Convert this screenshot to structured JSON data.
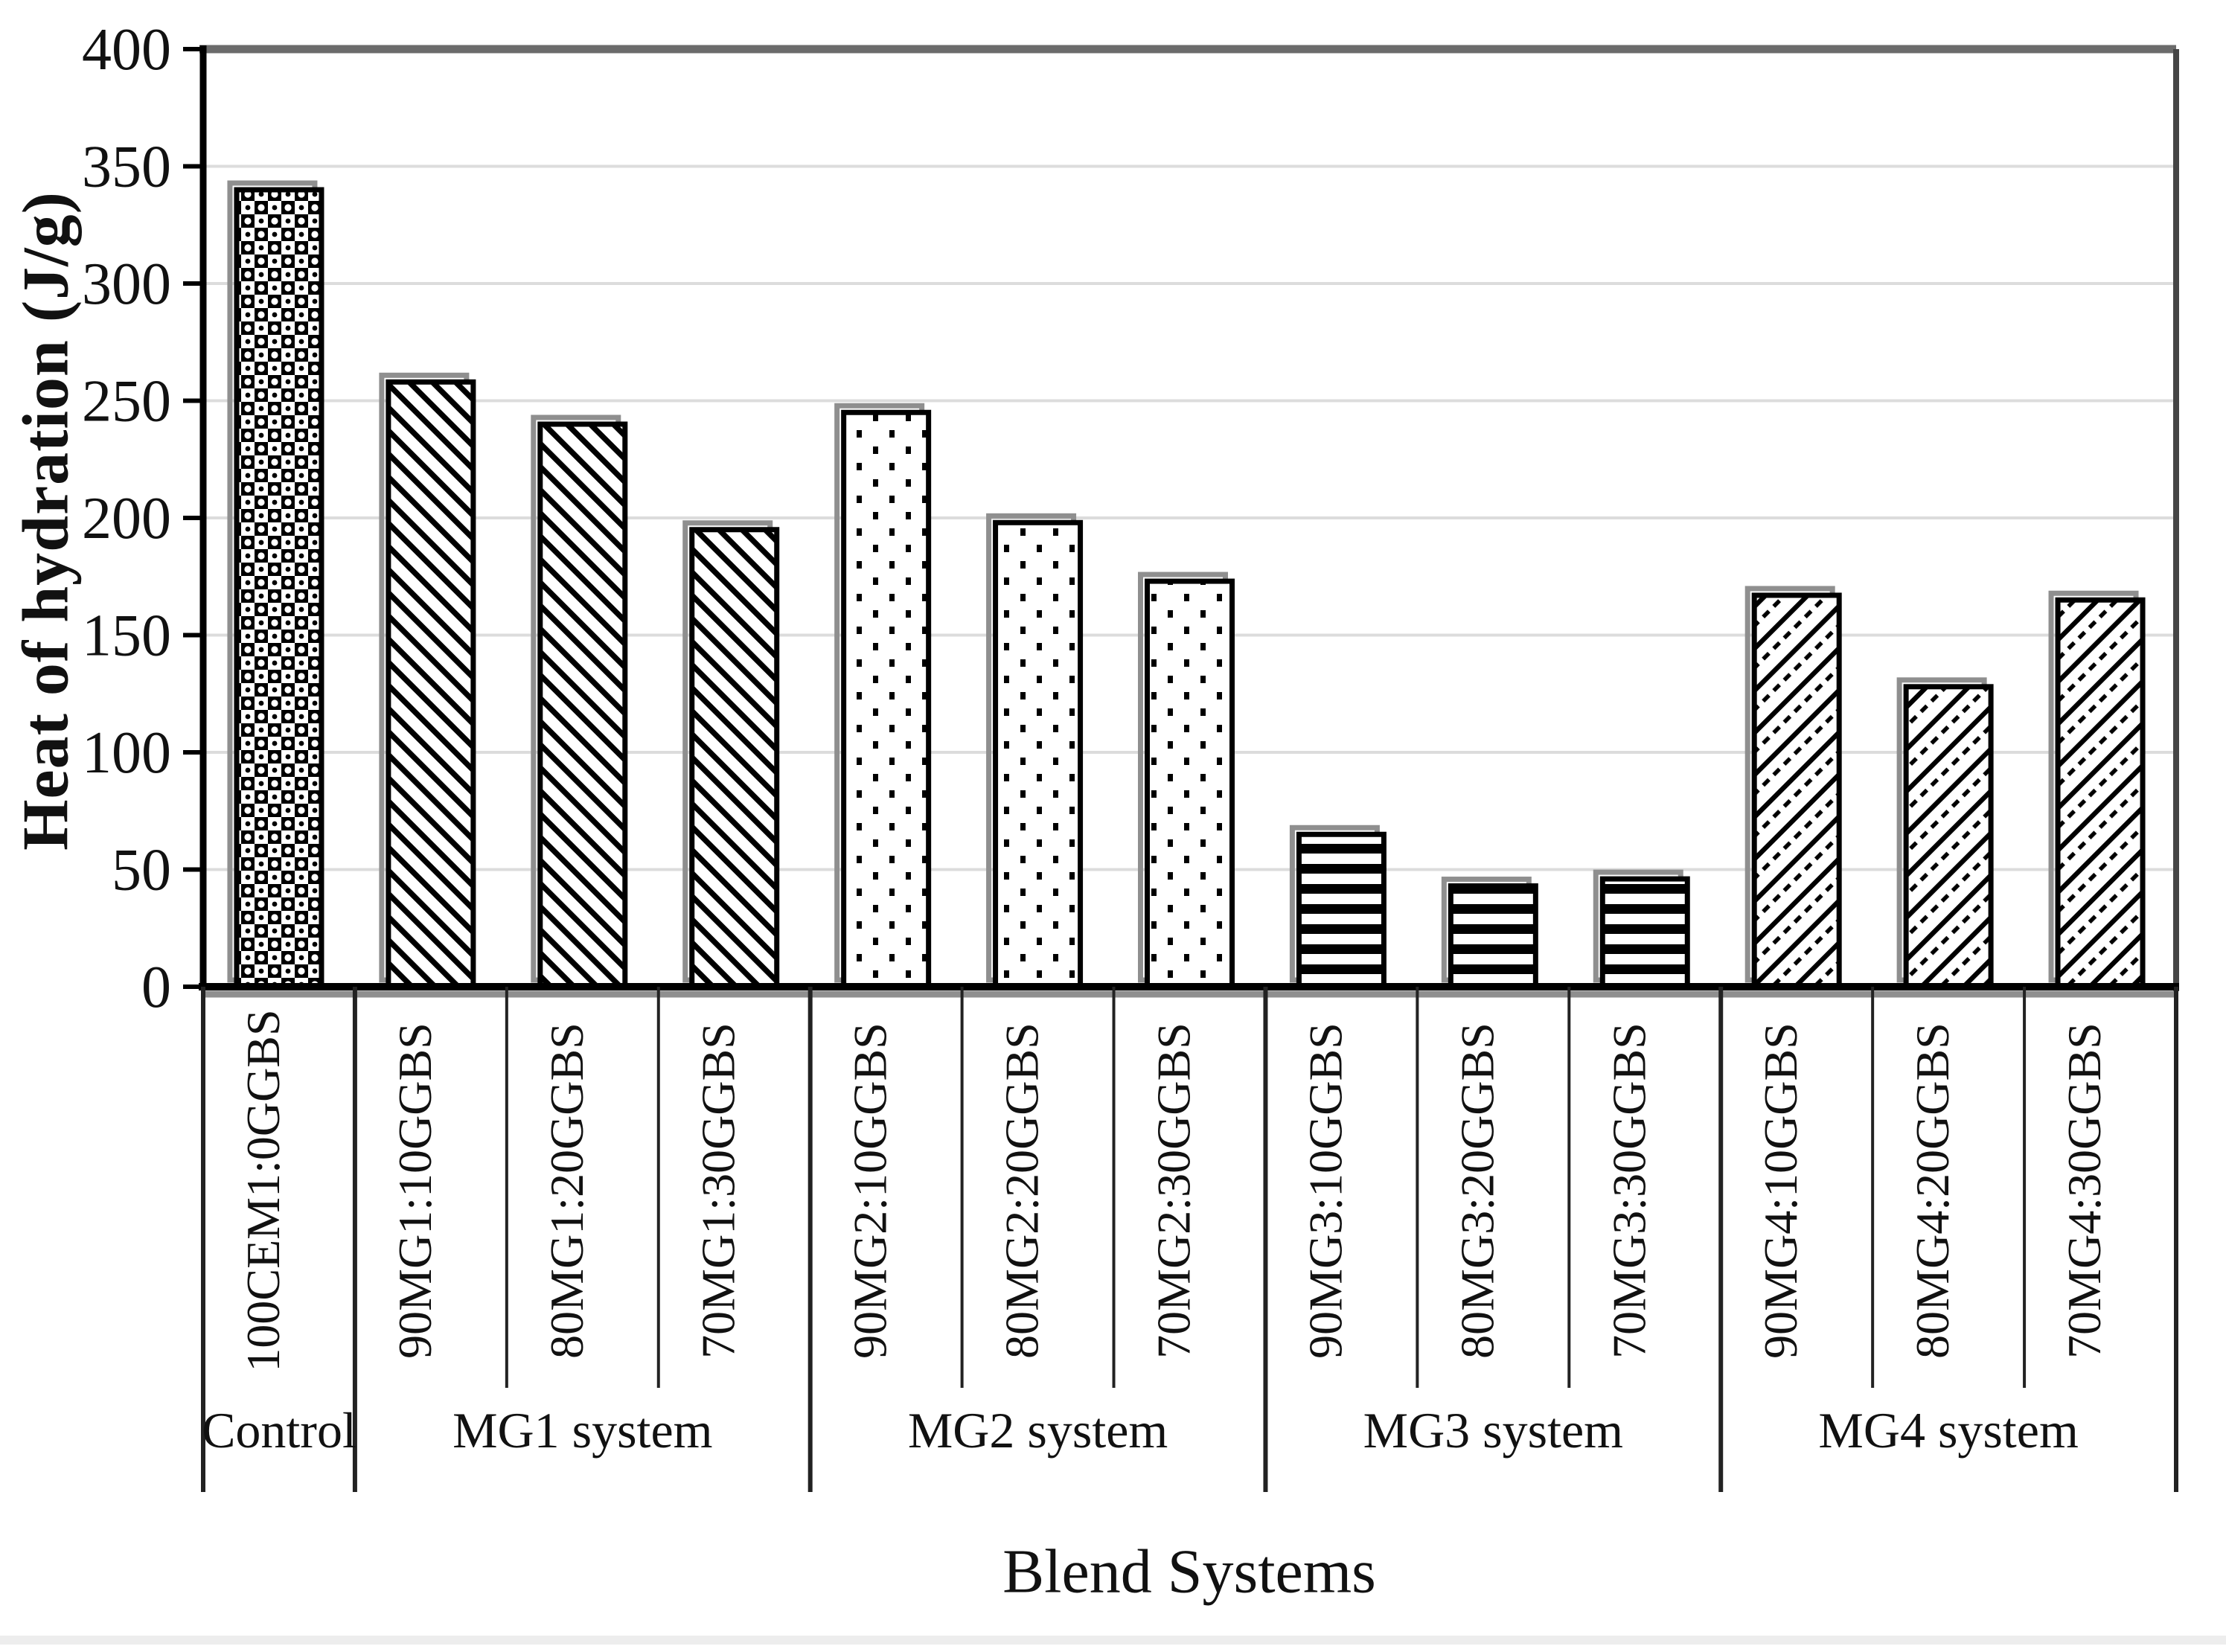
{
  "chart_data": {
    "type": "bar",
    "title": "",
    "ylabel": "Heat of hydration (J/g)",
    "xlabel": "Blend Systems",
    "ylim": [
      0,
      400
    ],
    "yticks": [
      0,
      50,
      100,
      150,
      200,
      250,
      300,
      350,
      400
    ],
    "grid": true,
    "legend_position": "none",
    "categories": [
      "100CEM1:0GGBS",
      "90MG1:10GGBS",
      "80MG1:20GGBS",
      "70MG1:30GGBS",
      "90MG2:10GGBS",
      "80MG2:20GGBS",
      "70MG2:30GGBS",
      "90MG3:10GGBS",
      "80MG3:20GGBS",
      "70MG3:30GGBS",
      "90MG4:10GGBS",
      "80MG4:20GGBS",
      "70MG4:30GGBS"
    ],
    "values": [
      340,
      258,
      240,
      195,
      245,
      198,
      173,
      65,
      43,
      46,
      167,
      128,
      165
    ],
    "groups": [
      {
        "label": "Control",
        "count": 1,
        "pattern": "woven-sphere-checker"
      },
      {
        "label": "MG1 system",
        "count": 3,
        "pattern": "diagonal-hatch-backslash"
      },
      {
        "label": "MG2 system",
        "count": 3,
        "pattern": "sparse-dots"
      },
      {
        "label": "MG3 system",
        "count": 3,
        "pattern": "horizontal-stripes"
      },
      {
        "label": "MG4 system",
        "count": 3,
        "pattern": "diagonal-scale-slash"
      }
    ]
  },
  "colors": {
    "bar_foreground": "#000000",
    "bar_background": "#ffffff",
    "bar_outline": "#000000",
    "bar_shadow": "#8f8f8f",
    "gridline": "#dcdcdc",
    "plot_top_border": "#6b6b6b",
    "plot_right_border": "#454545",
    "axis": "#000000",
    "text": "#111111"
  }
}
